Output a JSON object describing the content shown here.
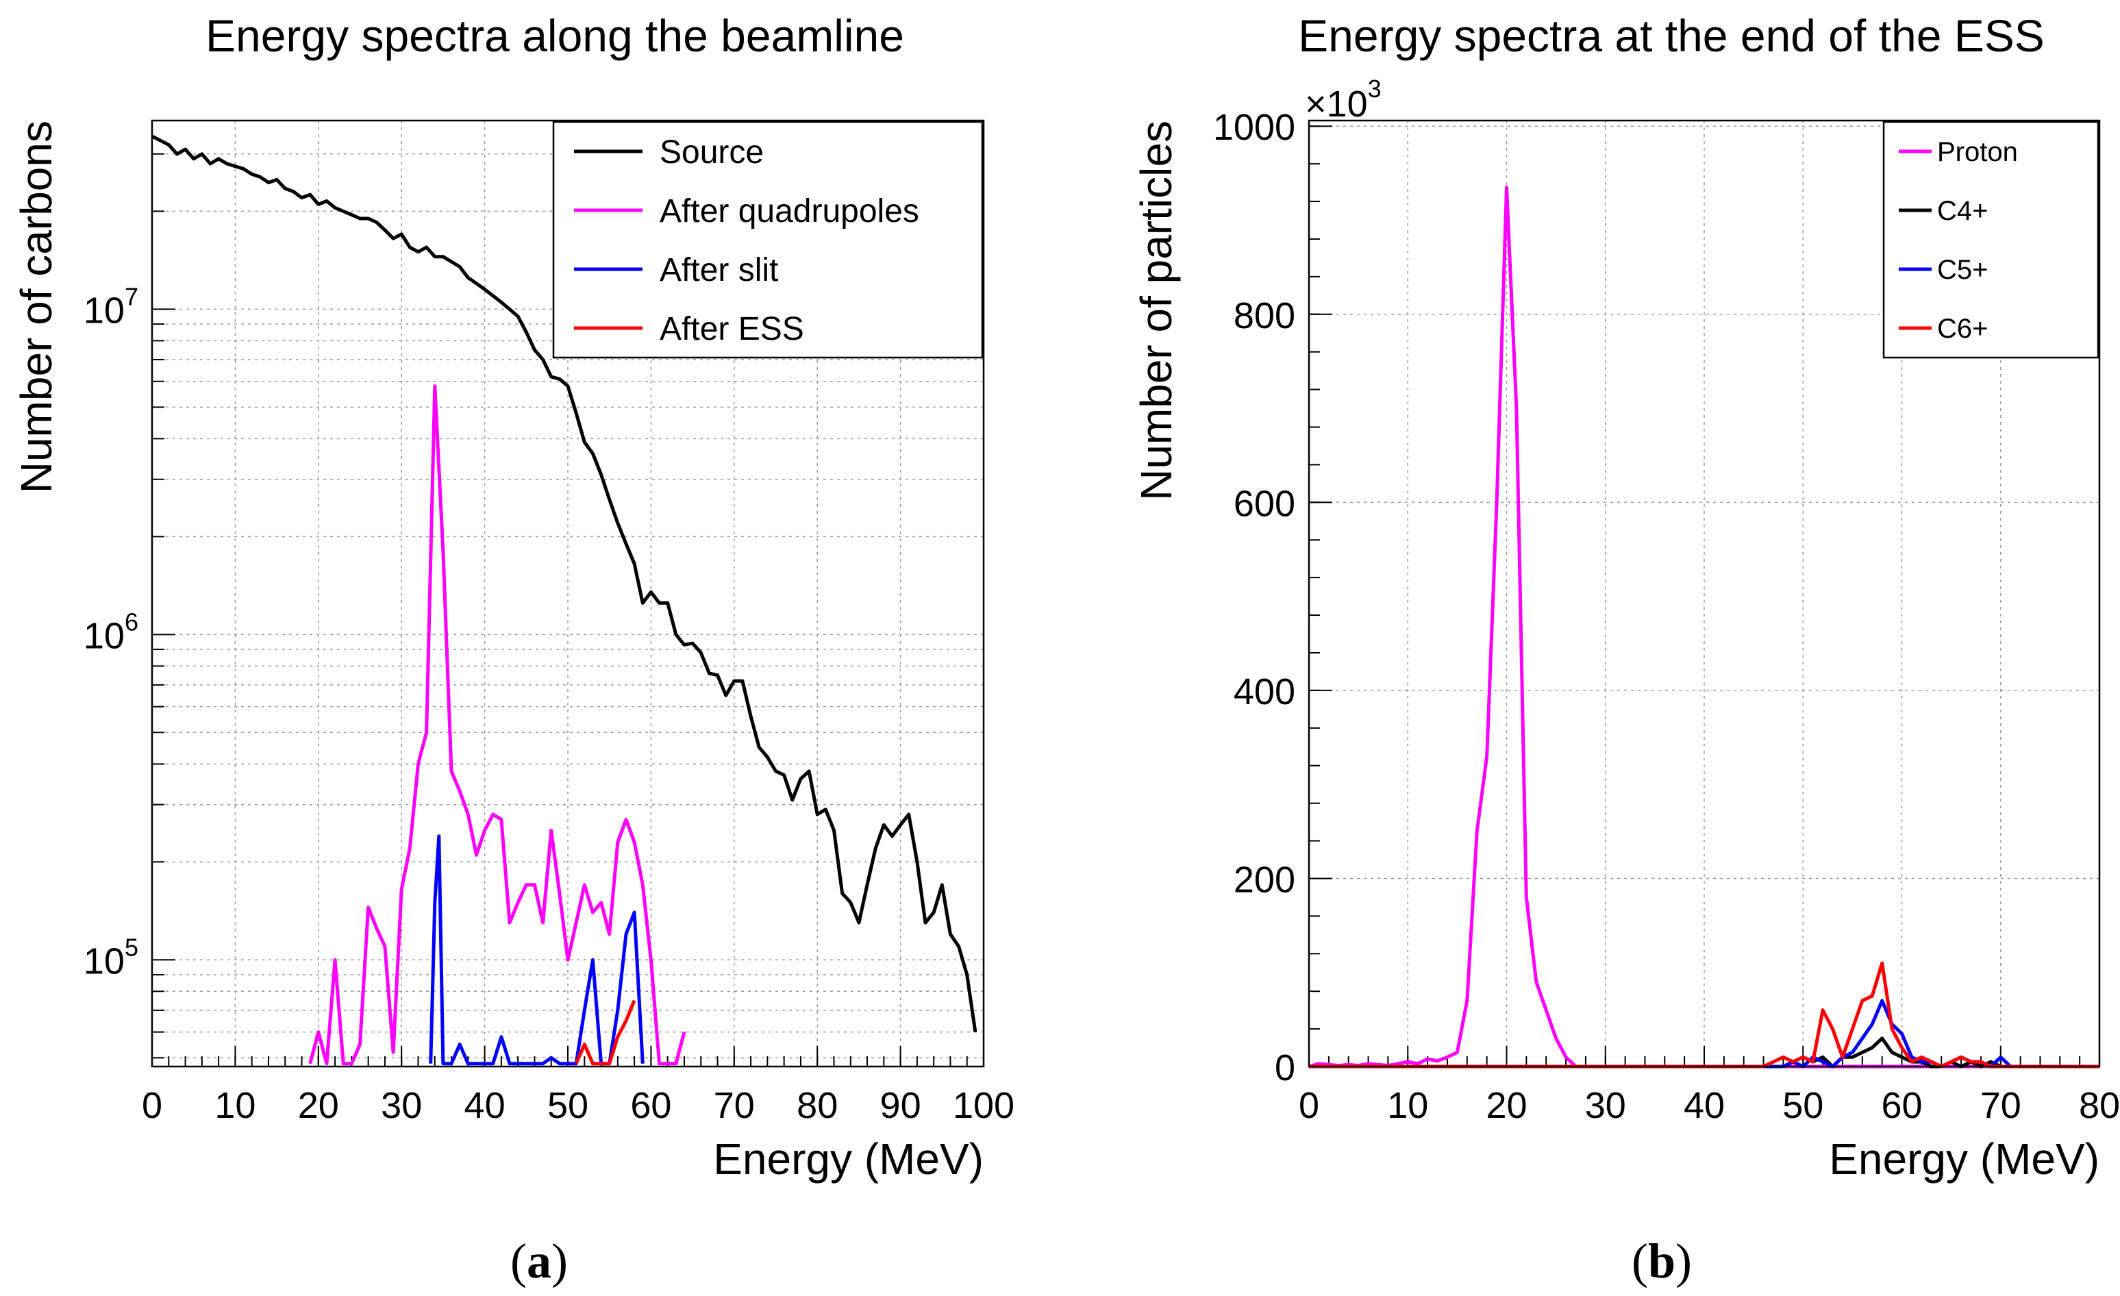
{
  "chart_data": [
    {
      "type": "line",
      "panel": "a",
      "title": "Energy spectra along the beamline",
      "xlabel": "Energy (MeV)",
      "ylabel": "Number of carbons",
      "xlim": [
        0,
        100
      ],
      "ylim": [
        47000,
        38000000
      ],
      "yscale": "log",
      "grid": true,
      "legend_position": "top-right",
      "x_ticks": [
        "0",
        "10",
        "20",
        "30",
        "40",
        "50",
        "60",
        "70",
        "80",
        "90",
        "100"
      ],
      "y_ticks": [
        {
          "base": "10",
          "exp": "5",
          "value": 100000
        },
        {
          "base": "10",
          "exp": "6",
          "value": 1000000
        },
        {
          "base": "10",
          "exp": "7",
          "value": 10000000
        }
      ],
      "series": [
        {
          "name": "Source",
          "color": "#000000",
          "x": [
            0,
            1,
            2,
            3,
            4,
            5,
            6,
            7,
            8,
            9,
            10,
            11,
            12,
            13,
            14,
            15,
            16,
            17,
            18,
            19,
            20,
            21,
            22,
            23,
            24,
            25,
            26,
            27,
            28,
            29,
            30,
            31,
            32,
            33,
            34,
            35,
            36,
            37,
            38,
            39,
            40,
            41,
            42,
            43,
            44,
            45,
            46,
            47,
            48,
            49,
            50,
            51,
            52,
            53,
            54,
            55,
            56,
            57,
            58,
            59,
            60,
            61,
            62,
            63,
            64,
            65,
            66,
            67,
            68,
            69,
            70,
            71,
            72,
            73,
            74,
            75,
            76,
            77,
            78,
            79,
            80,
            81,
            82,
            83,
            84,
            85,
            86,
            87,
            88,
            89,
            90,
            91,
            92,
            93,
            94,
            95,
            96,
            97,
            98,
            99
          ],
          "y": [
            34000000,
            33000000,
            32000000,
            30000000,
            31000000,
            29000000,
            30000000,
            28000000,
            29000000,
            28000000,
            27500000,
            27000000,
            26000000,
            25500000,
            24500000,
            25000000,
            23500000,
            23000000,
            22000000,
            22500000,
            21000000,
            21500000,
            20500000,
            20000000,
            19500000,
            19000000,
            19000000,
            18500000,
            17500000,
            16500000,
            17000000,
            15500000,
            15000000,
            15500000,
            14500000,
            14500000,
            14000000,
            13500000,
            12500000,
            12000000,
            11500000,
            11000000,
            10500000,
            10000000,
            9500000,
            8500000,
            7500000,
            7000000,
            6200000,
            6100000,
            5800000,
            4800000,
            3900000,
            3600000,
            3100000,
            2600000,
            2200000,
            1900000,
            1650000,
            1250000,
            1350000,
            1250000,
            1250000,
            1000000,
            930000,
            940000,
            880000,
            760000,
            750000,
            650000,
            720000,
            720000,
            560000,
            450000,
            420000,
            380000,
            370000,
            310000,
            360000,
            380000,
            280000,
            290000,
            250000,
            160000,
            150000,
            130000,
            170000,
            220000,
            260000,
            240000,
            260000,
            280000,
            200000,
            130000,
            140000,
            170000,
            120000,
            110000,
            90000,
            60000
          ]
        },
        {
          "name": "After quadrupoles",
          "color": "#ff00ff",
          "x": [
            19,
            20,
            21,
            22,
            23,
            24,
            25,
            26,
            27,
            28,
            29,
            30,
            31,
            32,
            33,
            34,
            35,
            36,
            37,
            38,
            39,
            40,
            41,
            42,
            43,
            44,
            45,
            46,
            47,
            48,
            49,
            50,
            51,
            52,
            53,
            54,
            55,
            56,
            57,
            58,
            59,
            60,
            61,
            62,
            63,
            64
          ],
          "y": [
            48000,
            60000,
            48000,
            100000,
            48000,
            48000,
            55000,
            145000,
            125000,
            110000,
            52000,
            165000,
            220000,
            400000,
            500000,
            5800000,
            1800000,
            380000,
            330000,
            280000,
            210000,
            250000,
            280000,
            270000,
            130000,
            150000,
            170000,
            170000,
            130000,
            250000,
            160000,
            100000,
            130000,
            170000,
            140000,
            150000,
            120000,
            230000,
            270000,
            230000,
            170000,
            100000,
            48000,
            48000,
            48000,
            60000
          ]
        },
        {
          "name": "After slit",
          "color": "#0000ff",
          "x": [
            33.5,
            34,
            34.5,
            35,
            36,
            37,
            38,
            39,
            40,
            41,
            42,
            43,
            47,
            48,
            49,
            51,
            52,
            53,
            54,
            55,
            56,
            57,
            58,
            59
          ],
          "y": [
            48000,
            150000,
            240000,
            48000,
            48000,
            55000,
            48000,
            48000,
            48000,
            48000,
            58000,
            48000,
            48000,
            50000,
            48000,
            48000,
            70000,
            100000,
            48000,
            48000,
            70000,
            120000,
            140000,
            48000
          ]
        },
        {
          "name": "After ESS",
          "color": "#ff0000",
          "x": [
            51,
            52,
            53,
            54,
            55,
            56,
            57,
            58
          ],
          "y": [
            48000,
            55000,
            48000,
            48000,
            48000,
            58000,
            65000,
            75000
          ]
        }
      ]
    },
    {
      "type": "line",
      "panel": "b",
      "title": "Energy spectra at the end of the ESS",
      "xlabel": "Energy (MeV)",
      "ylabel": "Number of particles",
      "y_multiplier": "×10",
      "y_multiplier_exp": "3",
      "xlim": [
        0,
        80
      ],
      "ylim": [
        0,
        1000
      ],
      "grid": true,
      "legend_position": "top-right",
      "x_ticks": [
        "0",
        "10",
        "20",
        "30",
        "40",
        "50",
        "60",
        "70",
        "80"
      ],
      "y_ticks": [
        "0",
        "200",
        "400",
        "600",
        "800",
        "1000"
      ],
      "series": [
        {
          "name": "Proton",
          "color": "#ff00ff",
          "x": [
            0,
            1,
            2,
            3,
            4,
            5,
            6,
            7,
            8,
            9,
            10,
            11,
            12,
            13,
            14,
            15,
            16,
            17,
            18,
            19,
            20,
            21,
            22,
            23,
            24,
            25,
            26,
            27,
            28,
            30,
            40,
            50,
            60,
            70,
            80
          ],
          "y": [
            0,
            3,
            2,
            1,
            2,
            1,
            3,
            2,
            1,
            3,
            5,
            3,
            8,
            6,
            10,
            15,
            70,
            250,
            330,
            600,
            935,
            700,
            180,
            90,
            60,
            30,
            10,
            0,
            0,
            0,
            0,
            0,
            0,
            0,
            0
          ]
        },
        {
          "name": "C4+",
          "color": "#000000",
          "x": [
            0,
            47,
            48,
            49,
            50,
            51,
            52,
            53,
            54,
            55,
            56,
            57,
            58,
            59,
            60,
            61,
            62,
            63,
            64,
            65,
            66,
            67,
            68,
            69,
            70,
            80
          ],
          "y": [
            0,
            0,
            0,
            5,
            10,
            5,
            10,
            0,
            10,
            10,
            15,
            20,
            30,
            15,
            10,
            5,
            5,
            0,
            0,
            5,
            0,
            5,
            0,
            5,
            0,
            0
          ]
        },
        {
          "name": "C5+",
          "color": "#0000ff",
          "x": [
            0,
            47,
            48,
            49,
            50,
            51,
            52,
            53,
            54,
            55,
            56,
            57,
            58,
            59,
            60,
            61,
            62,
            63,
            64,
            65,
            66,
            67,
            68,
            69,
            70,
            71,
            80
          ],
          "y": [
            0,
            0,
            0,
            5,
            0,
            10,
            5,
            0,
            10,
            15,
            30,
            45,
            70,
            45,
            35,
            10,
            5,
            5,
            0,
            5,
            10,
            5,
            5,
            0,
            10,
            0,
            0
          ]
        },
        {
          "name": "C6+",
          "color": "#ff0000",
          "x": [
            0,
            46,
            47,
            48,
            49,
            50,
            51,
            52,
            53,
            54,
            55,
            56,
            57,
            58,
            59,
            60,
            61,
            62,
            63,
            64,
            65,
            66,
            67,
            68,
            69,
            70,
            80
          ],
          "y": [
            0,
            0,
            5,
            10,
            5,
            10,
            5,
            60,
            40,
            10,
            40,
            70,
            75,
            110,
            40,
            20,
            5,
            10,
            5,
            0,
            5,
            10,
            5,
            5,
            0,
            0,
            0
          ]
        }
      ]
    }
  ],
  "captions": {
    "a": "a",
    "b": "b"
  }
}
